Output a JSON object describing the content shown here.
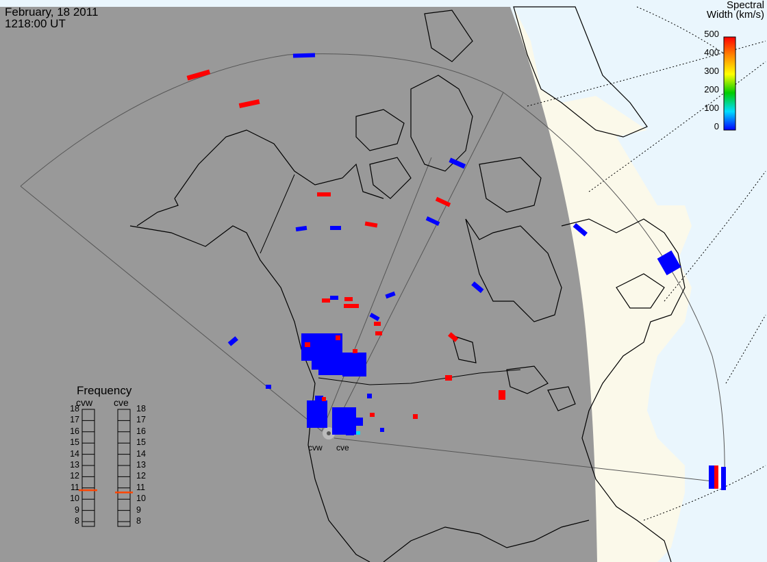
{
  "header": {
    "date": "February, 18 2011",
    "time": "1218:00 UT"
  },
  "colorbar": {
    "title_line1": "Spectral",
    "title_line2": "Width (km/s)",
    "ticks": [
      "500",
      "400",
      "300",
      "200",
      "100",
      "0"
    ],
    "range": [
      0,
      500
    ],
    "colors": [
      "#ff0000",
      "#ff8800",
      "#ffff00",
      "#00cc00",
      "#00ddff",
      "#0000ff"
    ]
  },
  "frequency_panel": {
    "title": "Frequency",
    "radars": [
      "cvw",
      "cve"
    ],
    "ticks": [
      "18",
      "17",
      "16",
      "15",
      "14",
      "13",
      "12",
      "11",
      "10",
      "9",
      "8"
    ],
    "cvw_value": 10.8,
    "cve_value": 10.6,
    "marker_color": "#ff4400"
  },
  "stations": {
    "cvw": "cvw",
    "cve": "cve"
  },
  "map_colors": {
    "night": "#999999",
    "day_land": "#fbf9ea",
    "day_ocean": "#eaf6fd",
    "scatter_high": "#ff0000",
    "scatter_low": "#0000ff"
  }
}
